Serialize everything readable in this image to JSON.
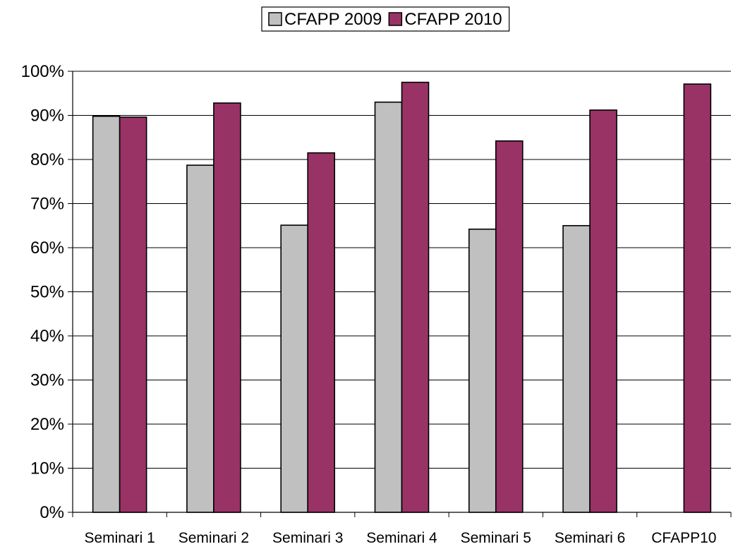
{
  "chart_data": {
    "type": "bar",
    "title": "",
    "xlabel": "",
    "ylabel": "",
    "ylim": [
      0,
      100
    ],
    "y_tick_step": 10,
    "y_tick_suffix": "%",
    "grid": true,
    "legend_position": "top",
    "categories": [
      "Seminari 1",
      "Seminari 2",
      "Seminari 3",
      "Seminari 4",
      "Seminari 5",
      "Seminari 6",
      "CFAPP10"
    ],
    "series": [
      {
        "name": "CFAPP 2009",
        "color": "#c0c0c0",
        "values": [
          89.8,
          78.7,
          65.1,
          93.0,
          64.2,
          65.0,
          null
        ]
      },
      {
        "name": "CFAPP 2010",
        "color": "#993366",
        "values": [
          89.6,
          92.8,
          81.5,
          97.5,
          84.2,
          91.2,
          97.1
        ]
      }
    ]
  }
}
